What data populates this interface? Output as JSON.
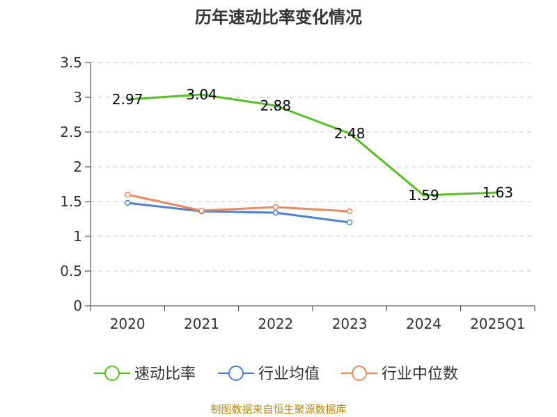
{
  "title": "历年速动比率变化情况",
  "source": "制图数据来自恒生聚源数据库",
  "chart_data": {
    "type": "line",
    "title": "历年速动比率变化情况",
    "categories": [
      "2020",
      "2021",
      "2022",
      "2023",
      "2024",
      "2025Q1"
    ],
    "ylim": [
      0,
      3.5
    ],
    "yticks": [
      0,
      0.5,
      1,
      1.5,
      2,
      2.5,
      3,
      3.5
    ],
    "ytick_labels": [
      "0",
      "0.5",
      "1",
      "1.5",
      "2",
      "2.5",
      "3",
      "3.5"
    ],
    "grid": true,
    "legend_position": "bottom",
    "series": [
      {
        "name": "速动比率",
        "color": "#52c41a",
        "values": [
          2.97,
          3.04,
          2.88,
          2.48,
          1.59,
          1.63
        ],
        "labels": [
          "2.97",
          "3.04",
          "2.88",
          "2.48",
          "1.59",
          "1.63"
        ]
      },
      {
        "name": "行业均值",
        "color": "#4a7fdc",
        "values": [
          1.48,
          1.36,
          1.34,
          1.2,
          null,
          null
        ]
      },
      {
        "name": "行业中位数",
        "color": "#f0885a",
        "values": [
          1.6,
          1.37,
          1.42,
          1.36,
          null,
          null
        ]
      }
    ]
  }
}
